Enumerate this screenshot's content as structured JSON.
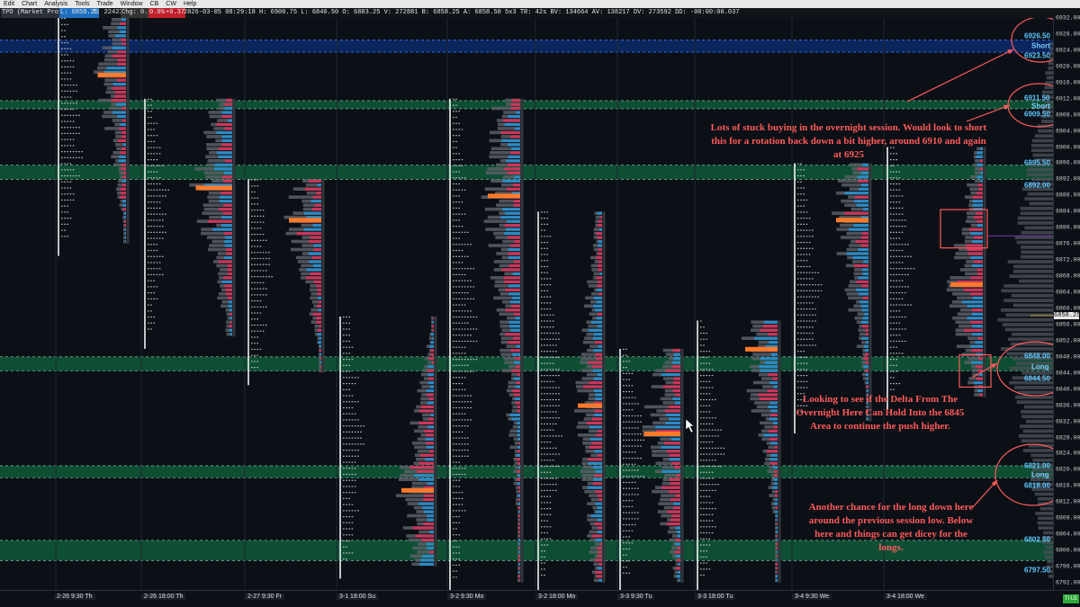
{
  "menu": [
    "Edit",
    "Chart",
    "Analysis",
    "Tools",
    "Trade",
    "Window",
    "CB",
    "CW",
    "Help"
  ],
  "infobar": {
    "title": "TPO (Market Profile)",
    "last": "L: 6858.25",
    "trades": "T: 224235",
    "chg": "Chg: 0.00",
    "pct1": "0.0%",
    "pct2": "+0.37",
    "stats": "2026-03-05 08:29:18  H: 6900.75  L: 6840.50  O: 6883.25  V: 272881  B: 6858.25  A: 6858.50  5x3  TR: 42s  BV: 134664  AV: 138217  DV: 273592  DD: -00:00:00.037"
  },
  "price_axis": {
    "ticks": [
      "6932.00",
      "6928.00",
      "6924.00",
      "6920.00",
      "6916.00",
      "6912.00",
      "6908.00",
      "6904.00",
      "6900.00",
      "6896.00",
      "6892.00",
      "6888.00",
      "6884.00",
      "6880.00",
      "6876.00",
      "6872.00",
      "6868.00",
      "6864.00",
      "6860.00",
      "6856.00",
      "6852.00",
      "6848.00",
      "6844.00",
      "6840.00",
      "6836.00",
      "6832.00",
      "6828.00",
      "6824.00",
      "6820.00",
      "6816.00",
      "6812.00",
      "6808.00",
      "6804.00",
      "6800.00",
      "6796.00",
      "6792.00"
    ],
    "current": "6858.25"
  },
  "time_axis": {
    "labels": [
      "2-26  9:30 Th",
      "2-26  18:00 Th",
      "2-27  9:30 Fr",
      "3-1  18:00 Su",
      "3-2  9:30 Mo",
      "3-2  18:00 Mo",
      "3-3  9:30 Tu",
      "3-3  18:00 Tu",
      "3-4  9:30 We",
      "3-4  18:00 We"
    ],
    "mode": "TI LE"
  },
  "levels": {
    "short_1_top": "6926.50",
    "short_1_label": "Short",
    "short_1_bottom": "6923.50",
    "short_2_top": "6911.50",
    "short_2_label": "Short",
    "short_2_bottom": "6909.50",
    "zone_a_top": "6895.50",
    "zone_a_bottom": "6892.00",
    "long_1_top": "6848.00",
    "long_1_label": "Long",
    "long_1_bottom": "6844.50",
    "long_2_top": "6821.00",
    "long_2_label": "Long",
    "long_2_bottom": "6818.00",
    "zone_b_top": "6802.50",
    "zone_b_bottom": "6797.50"
  },
  "annotations": {
    "note_1": "Lots of stuck buying in the overnight session.  Would look to short this for a rotation back down a bit higher, around 6910 and again at 6925",
    "note_2": "Looking to see if the Delta From The Overnight Here Can Hold Into the 6845 Area to continue the push higher.",
    "note_3": "Another chance for the long down here around the previous session low.  Below here and things can get dicey for the longs."
  },
  "colors": {
    "background": "#0b1016",
    "zone_fill": "#0f5a3a",
    "short_zone_fill": "#0b2a6a",
    "annotation": "#ff5a5a",
    "delta_buy": "#2a8cc8",
    "delta_sell": "#d0345a",
    "poc": "#ff7a2a",
    "profile_gray": "#5a5e66"
  }
}
